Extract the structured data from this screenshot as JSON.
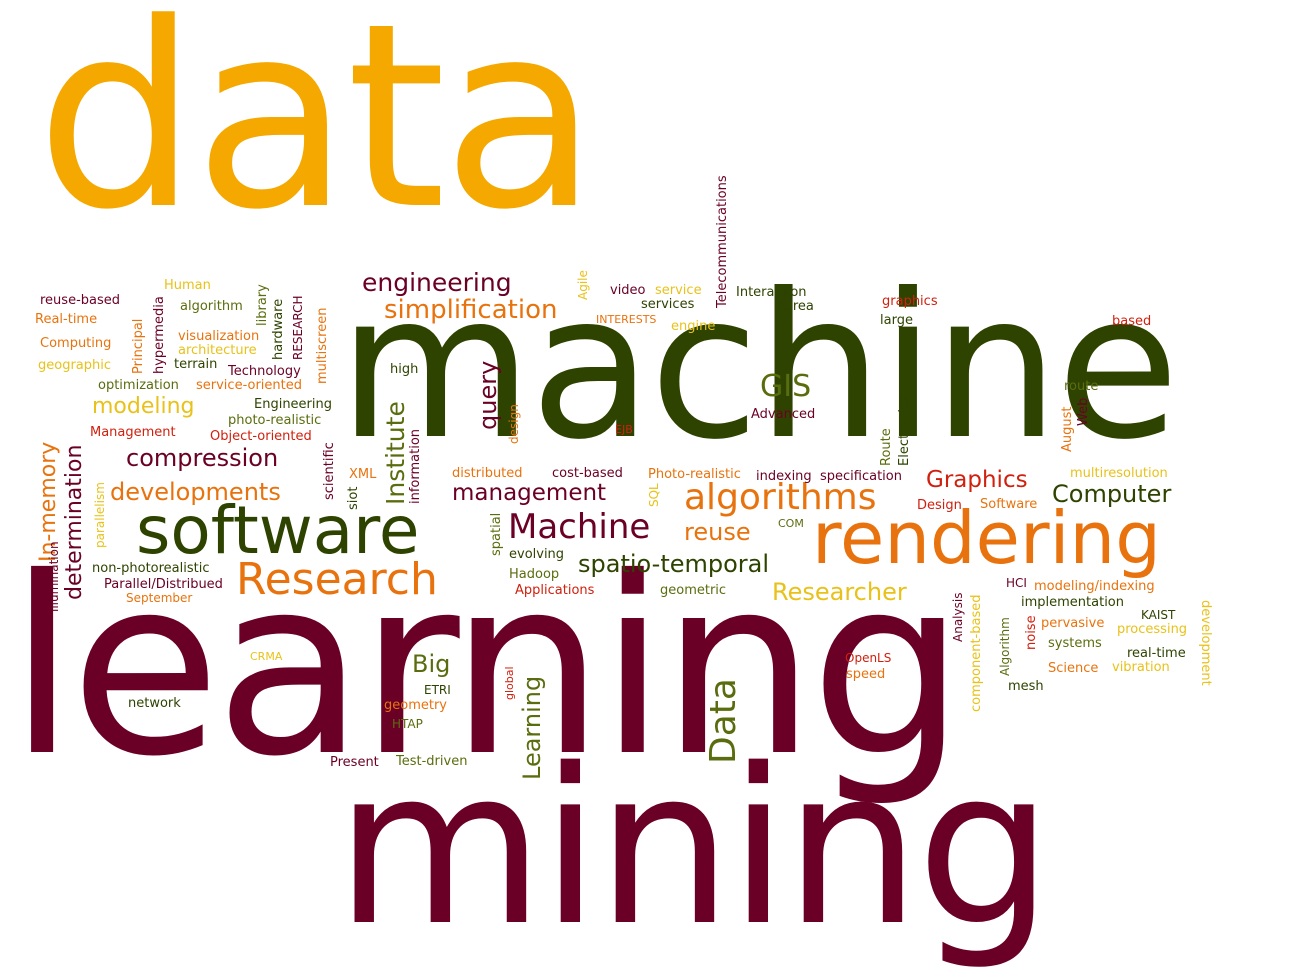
{
  "palette": {
    "gold": "#F5A800",
    "yellow": "#E8C21A",
    "orange": "#E8730E",
    "red": "#D0200E",
    "darkgreen": "#2E4300",
    "olive": "#5A6D0E",
    "maroon": "#6B0026"
  },
  "words": {
    "data": "data",
    "machine": "machine",
    "learning": "learning",
    "mining": "mining",
    "software": "software",
    "rendering": "rendering",
    "research": "Research",
    "algorithms": "algorithms",
    "machine_cap": "Machine",
    "researcher": "Researcher",
    "spatio_temporal": "spatio-temporal",
    "computer": "Computer",
    "graphics_cap": "Graphics",
    "gis": "GIS",
    "compression": "compression",
    "developments": "developments",
    "modeling": "modeling",
    "management": "management",
    "simplification": "simplification",
    "engineering": "engineering",
    "reuse": "reuse",
    "big": "Big",
    "data_cap": "Data",
    "learning_cap": "Learning",
    "institute": "Institute",
    "query": "query",
    "in_memory": "In-memory",
    "determination": "determination",
    "telecommunications": "Telecommunications",
    "reuse_based": "reuse-based",
    "real_time_cap": "Real-time",
    "computing": "Computing",
    "geographic": "geographic",
    "human": "Human",
    "algorithm": "algorithm",
    "visualization": "visualization",
    "architecture": "architecture",
    "terrain": "terrain",
    "technology": "Technology",
    "optimization": "optimization",
    "service_oriented": "service-oriented",
    "engineering_cap": "Engineering",
    "photo_realistic": "photo-realistic",
    "management_cap": "Management",
    "object_oriented": "Object-oriented",
    "principal": "Principal",
    "hypermedia": "hypermedia",
    "library": "library",
    "hardware": "hardware",
    "research_upper": "RESEARCH",
    "multiscreen": "multiscreen",
    "high": "high",
    "scientific": "scientific",
    "information": "information",
    "design": "design",
    "xml": "XML",
    "siot": "siot",
    "distributed": "distributed",
    "cost_based": "cost-based",
    "sql": "SQL",
    "spatial": "spatial",
    "evolving": "evolving",
    "hadoop": "Hadoop",
    "applications": "Applications",
    "com": "COM",
    "geometric": "geometric",
    "agile": "Agile",
    "video": "video",
    "service": "service",
    "services": "services",
    "interests": "INTERESTS",
    "engine": "engine",
    "interaction": "Interaction",
    "korea": "Korea",
    "graphics": "graphics",
    "large": "large",
    "based": "based",
    "advanced": "Advanced",
    "ejb": "EJB",
    "photo_realistic_cap": "Photo-realistic",
    "indexing": "indexing",
    "specification": "specification",
    "route_cap": "Route",
    "electronics": "Electronics",
    "august": "August",
    "web": "Web",
    "route": "route",
    "multiresolution": "multiresolution",
    "design_cap": "Design",
    "software_cap": "Software",
    "hci": "HCI",
    "modeling_indexing": "modeling/indexing",
    "implementation": "implementation",
    "kaist": "KAIST",
    "pervasive": "pervasive",
    "processing": "processing",
    "systems": "systems",
    "real_time": "real-time",
    "science": "Science",
    "vibration": "vibration",
    "mesh": "mesh",
    "noise": "noise",
    "algorithm_cap": "Algorithm",
    "component_based": "component-based",
    "analysis": "Analysis",
    "development": "development",
    "openls": "OpenLS",
    "speed": "speed",
    "crma": "CRMA",
    "etri": "ETRI",
    "geometry": "geometry",
    "htap": "HTAP",
    "global": "global",
    "present": "Present",
    "test_driven": "Test-driven",
    "network": "network",
    "parallelism": "parallelism",
    "illumination": "illumination",
    "non_photorealistic": "non-photorealistic",
    "parallel_distribued": "Parallel/Distribued",
    "september": "September"
  }
}
